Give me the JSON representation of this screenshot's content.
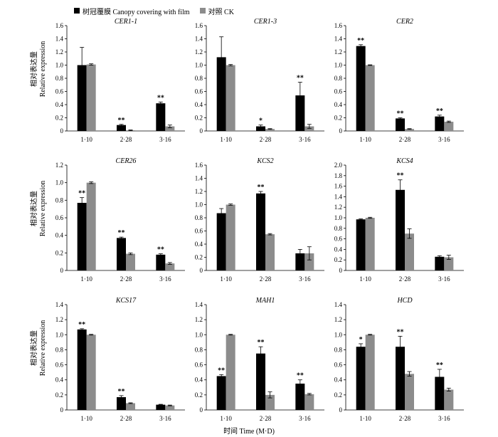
{
  "legend": {
    "film_label": "树冠覆膜 Canopy covering with film",
    "ck_label": "对照 CK"
  },
  "colors": {
    "film": "#000000",
    "ck": "#8c8c8c"
  },
  "ylabel_cn": "相对表达量",
  "ylabel_en": "Relative expression",
  "xlabel": "时间 Time (M·D)",
  "chart_data": [
    {
      "type": "bar",
      "title": "CER1-1",
      "categories": [
        "1·10",
        "2·28",
        "3·16"
      ],
      "ylim": [
        0,
        1.6
      ],
      "yticks": [
        "0",
        "0.2",
        "0.4",
        "0.6",
        "0.8",
        "1.0",
        "1.2",
        "1.4",
        "1.6"
      ],
      "series": [
        {
          "values": [
            1.0,
            0.09,
            0.42
          ],
          "errors": [
            0.27,
            0.01,
            0.02
          ]
        },
        {
          "values": [
            1.01,
            0.01,
            0.07
          ],
          "errors": [
            0.01,
            0.005,
            0.02
          ]
        }
      ],
      "annotations": [
        "",
        "**",
        "**"
      ]
    },
    {
      "type": "bar",
      "title": "CER1-3",
      "categories": [
        "1·10",
        "2·28",
        "3·16"
      ],
      "ylim": [
        0,
        1.6
      ],
      "yticks": [
        "0",
        "0.2",
        "0.4",
        "0.6",
        "0.8",
        "1.0",
        "1.2",
        "1.4",
        "1.6"
      ],
      "series": [
        {
          "values": [
            1.12,
            0.07,
            0.54
          ],
          "errors": [
            0.31,
            0.02,
            0.2
          ]
        },
        {
          "values": [
            1.0,
            0.03,
            0.07
          ],
          "errors": [
            0.01,
            0.005,
            0.03
          ]
        }
      ],
      "annotations": [
        "",
        "*",
        "**"
      ]
    },
    {
      "type": "bar",
      "title": "CER2",
      "categories": [
        "1·10",
        "2·28",
        "3·16"
      ],
      "ylim": [
        0,
        1.6
      ],
      "yticks": [
        "0",
        "0.2",
        "0.4",
        "0.6",
        "0.8",
        "1.0",
        "1.2",
        "1.4",
        "1.6"
      ],
      "series": [
        {
          "values": [
            1.29,
            0.19,
            0.22
          ],
          "errors": [
            0.02,
            0.01,
            0.02
          ]
        },
        {
          "values": [
            1.0,
            0.03,
            0.14
          ],
          "errors": [
            0.005,
            0.005,
            0.01
          ]
        }
      ],
      "annotations": [
        "**",
        "**",
        "**"
      ]
    },
    {
      "type": "bar",
      "title": "CER26",
      "categories": [
        "1·10",
        "2·28",
        "3·16"
      ],
      "ylim": [
        0,
        1.2
      ],
      "yticks": [
        "0",
        "0.2",
        "0.4",
        "0.6",
        "0.8",
        "1.0",
        "1.2"
      ],
      "series": [
        {
          "values": [
            0.77,
            0.37,
            0.18
          ],
          "errors": [
            0.06,
            0.01,
            0.01
          ]
        },
        {
          "values": [
            1.0,
            0.19,
            0.08
          ],
          "errors": [
            0.01,
            0.01,
            0.01
          ]
        }
      ],
      "annotations": [
        "**",
        "**",
        "**"
      ]
    },
    {
      "type": "bar",
      "title": "KCS2",
      "categories": [
        "1·10",
        "2·28",
        "3·16"
      ],
      "ylim": [
        0,
        1.6
      ],
      "yticks": [
        "0",
        "0.2",
        "0.4",
        "0.6",
        "0.8",
        "1.0",
        "1.2",
        "1.4",
        "1.6"
      ],
      "series": [
        {
          "values": [
            0.87,
            1.17,
            0.26
          ],
          "errors": [
            0.07,
            0.03,
            0.06
          ]
        },
        {
          "values": [
            1.0,
            0.55,
            0.26
          ],
          "errors": [
            0.01,
            0.01,
            0.1
          ]
        }
      ],
      "annotations": [
        "",
        "**",
        ""
      ]
    },
    {
      "type": "bar",
      "title": "KCS4",
      "categories": [
        "1·10",
        "2·28",
        "3·16"
      ],
      "ylim": [
        0,
        2.0
      ],
      "yticks": [
        "0",
        "0.2",
        "0.4",
        "0.6",
        "0.8",
        "1.0",
        "1.2",
        "1.4",
        "1.6",
        "1.8",
        "2.0"
      ],
      "series": [
        {
          "values": [
            0.97,
            1.53,
            0.26
          ],
          "errors": [
            0.01,
            0.19,
            0.02
          ]
        },
        {
          "values": [
            1.0,
            0.7,
            0.25
          ],
          "errors": [
            0.01,
            0.09,
            0.04
          ]
        }
      ],
      "annotations": [
        "",
        "**",
        ""
      ]
    },
    {
      "type": "bar",
      "title": "KCS17",
      "categories": [
        "1·10",
        "2·28",
        "3·16"
      ],
      "ylim": [
        0,
        1.4
      ],
      "yticks": [
        "0",
        "0.2",
        "0.4",
        "0.6",
        "0.8",
        "1.0",
        "1.2",
        "1.4"
      ],
      "series": [
        {
          "values": [
            1.07,
            0.17,
            0.07
          ],
          "errors": [
            0.01,
            0.02,
            0.005
          ]
        },
        {
          "values": [
            1.0,
            0.09,
            0.06
          ],
          "errors": [
            0.005,
            0.005,
            0.005
          ]
        }
      ],
      "annotations": [
        "**",
        "**",
        ""
      ]
    },
    {
      "type": "bar",
      "title": "MAH1",
      "categories": [
        "1·10",
        "2·28",
        "3·16"
      ],
      "ylim": [
        0,
        1.4
      ],
      "yticks": [
        "0",
        "0.2",
        "0.4",
        "0.6",
        "0.8",
        "1.0",
        "1.2",
        "1.4"
      ],
      "series": [
        {
          "values": [
            0.45,
            0.75,
            0.35
          ],
          "errors": [
            0.02,
            0.09,
            0.05
          ]
        },
        {
          "values": [
            1.0,
            0.2,
            0.21
          ],
          "errors": [
            0.005,
            0.04,
            0.01
          ]
        }
      ],
      "annotations": [
        "**",
        "**",
        "**"
      ]
    },
    {
      "type": "bar",
      "title": "HCD",
      "categories": [
        "1·10",
        "2·28",
        "3·16"
      ],
      "ylim": [
        0,
        1.4
      ],
      "yticks": [
        "0",
        "0.2",
        "0.4",
        "0.6",
        "0.8",
        "1.0",
        "1.2",
        "1.4"
      ],
      "series": [
        {
          "values": [
            0.84,
            0.84,
            0.44
          ],
          "errors": [
            0.04,
            0.14,
            0.1
          ]
        },
        {
          "values": [
            1.0,
            0.48,
            0.27
          ],
          "errors": [
            0.005,
            0.03,
            0.02
          ]
        }
      ],
      "annotations": [
        "*",
        "**",
        "**"
      ]
    }
  ]
}
